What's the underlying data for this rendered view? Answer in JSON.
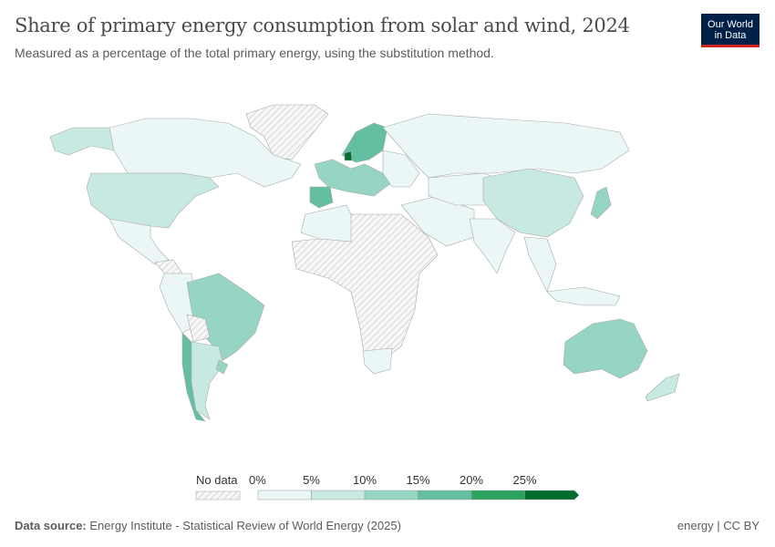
{
  "header": {
    "title": "Share of primary energy consumption from solar and wind, 2024",
    "subtitle": "Measured as a percentage of the total primary energy, using the substitution method."
  },
  "logo": {
    "line1": "Our World",
    "line2": "in Data",
    "bg": "#002147",
    "accent": "#ce261e"
  },
  "legend": {
    "no_data_label": "No data",
    "bins": [
      {
        "label": "0%",
        "color": "#ebf6f6"
      },
      {
        "label": "5%",
        "color": "#c8e9e1"
      },
      {
        "label": "10%",
        "color": "#96d5c4"
      },
      {
        "label": "15%",
        "color": "#64bea0"
      },
      {
        "label": "20%",
        "color": "#2ca25f"
      },
      {
        "label": "25%",
        "color": "#006d2c"
      }
    ]
  },
  "footer": {
    "source_label": "Data source:",
    "source_text": "Energy Institute - Statistical Review of World Energy (2025)",
    "license": "energy | CC BY"
  }
}
